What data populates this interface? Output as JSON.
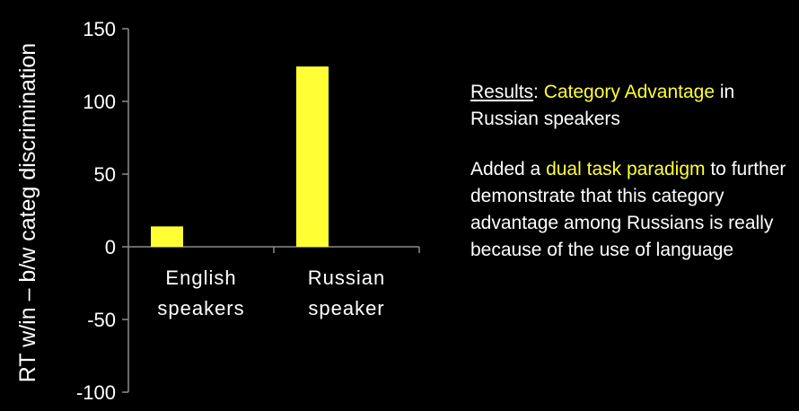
{
  "chart_data": {
    "type": "bar",
    "categories": [
      "English speakers",
      "Russian speaker"
    ],
    "category_lines": [
      [
        "English",
        "speakers"
      ],
      [
        "Russian",
        "speaker"
      ]
    ],
    "values": [
      14,
      124
    ],
    "ylabel": "RT w/in – b/w categ discrimination",
    "ylim": [
      -100,
      150
    ],
    "yticks": [
      150,
      100,
      50,
      0,
      -50,
      -100
    ],
    "grid": false,
    "bar_color": "#ffff33",
    "axis_color": "#8c8c8c"
  },
  "text_panel": {
    "p1": {
      "lead": "Results",
      "colon": ": ",
      "highlight": "Category Advantage",
      "rest": " in Russian speakers"
    },
    "p2": {
      "before": "Added a ",
      "highlight": "dual task paradigm",
      "after": " to further demonstrate that this category advantage among Russians is really because of the use of language"
    },
    "highlight_color": "#ffff33"
  }
}
